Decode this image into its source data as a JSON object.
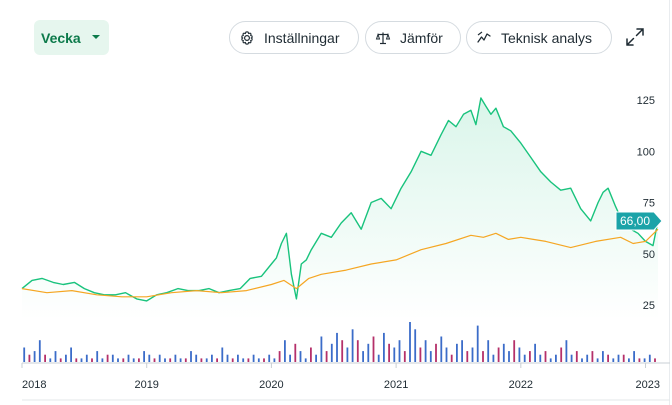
{
  "toolbar": {
    "period_label": "Vecka",
    "settings_label": "Inställningar",
    "compare_label": "Jämför",
    "technical_label": "Teknisk analys",
    "icons": {
      "period_caret": "caret-down-icon",
      "settings": "gear-icon",
      "compare": "scales-icon",
      "technical": "trend-line-icon",
      "expand": "expand-icon"
    }
  },
  "chart_data": {
    "type": "line",
    "title": "",
    "xlabel": "",
    "ylabel": "",
    "x_ticks": [
      "2018",
      "2019",
      "2020",
      "2021",
      "2022",
      "2023"
    ],
    "y_ticks": [
      125,
      100,
      75,
      50,
      25
    ],
    "ylim": [
      0,
      135
    ],
    "xlim": [
      2018.0,
      2023.1
    ],
    "grid": false,
    "current_price_label": "66,00",
    "colors": {
      "primary": "#19c37d",
      "secondary": "#f5a623",
      "badge": "#1ba3a8",
      "volume_up": "#3b6cc9",
      "volume_down": "#b5306a"
    },
    "series": [
      {
        "color": "#19c37d",
        "x": [
          2018.0,
          2018.08,
          2018.16,
          2018.25,
          2018.33,
          2018.42,
          2018.5,
          2018.58,
          2018.66,
          2018.75,
          2018.83,
          2018.92,
          2019.0,
          2019.08,
          2019.16,
          2019.25,
          2019.33,
          2019.42,
          2019.5,
          2019.58,
          2019.66,
          2019.75,
          2019.83,
          2019.92,
          2020.0,
          2020.04,
          2020.08,
          2020.12,
          2020.16,
          2020.2,
          2020.24,
          2020.28,
          2020.32,
          2020.4,
          2020.48,
          2020.56,
          2020.64,
          2020.72,
          2020.8,
          2020.88,
          2020.96,
          2021.04,
          2021.12,
          2021.2,
          2021.28,
          2021.36,
          2021.42,
          2021.48,
          2021.54,
          2021.6,
          2021.64,
          2021.68,
          2021.72,
          2021.76,
          2021.8,
          2021.86,
          2021.92,
          2022.0,
          2022.08,
          2022.16,
          2022.24,
          2022.32,
          2022.4,
          2022.48,
          2022.56,
          2022.62,
          2022.66,
          2022.7,
          2022.76,
          2022.82,
          2022.88,
          2022.94,
          2023.0,
          2023.06,
          2023.1
        ],
        "y": [
          33,
          37,
          38,
          36,
          35,
          36,
          33,
          31,
          30,
          30,
          31,
          28,
          27,
          30,
          31,
          33,
          32,
          32,
          33,
          31,
          32,
          33,
          38,
          39,
          45,
          48,
          55,
          60,
          40,
          28,
          45,
          47,
          52,
          60,
          58,
          65,
          70,
          62,
          75,
          77,
          72,
          82,
          90,
          100,
          98,
          108,
          115,
          112,
          118,
          120,
          113,
          126,
          122,
          118,
          121,
          112,
          110,
          104,
          97,
          90,
          85,
          81,
          82,
          72,
          66,
          75,
          80,
          82,
          73,
          65,
          62,
          60,
          56,
          54,
          66
        ]
      },
      {
        "color": "#f5a623",
        "x": [
          2018.0,
          2018.2,
          2018.4,
          2018.6,
          2018.8,
          2019.0,
          2019.2,
          2019.4,
          2019.6,
          2019.8,
          2020.0,
          2020.1,
          2020.2,
          2020.3,
          2020.4,
          2020.6,
          2020.8,
          2021.0,
          2021.2,
          2021.4,
          2021.6,
          2021.7,
          2021.8,
          2021.9,
          2022.0,
          2022.1,
          2022.2,
          2022.4,
          2022.6,
          2022.8,
          2022.9,
          2023.0,
          2023.1
        ],
        "y": [
          33,
          31,
          32,
          30,
          29,
          29,
          31,
          32,
          31,
          32,
          35,
          37,
          33,
          38,
          40,
          42,
          45,
          47,
          52,
          55,
          59,
          58,
          60,
          57,
          58,
          57,
          56,
          53,
          56,
          58,
          55,
          56,
          62
        ]
      }
    ],
    "volume_min_y": 0,
    "volume_values": [
      4,
      2,
      3,
      6,
      2,
      1,
      3,
      1,
      2,
      4,
      1,
      1,
      2,
      1,
      3,
      1,
      2,
      2,
      1,
      1,
      2,
      1,
      1,
      3,
      2,
      1,
      2,
      1,
      1,
      2,
      1,
      1,
      3,
      2,
      1,
      1,
      2,
      1,
      4,
      2,
      1,
      2,
      1,
      1,
      2,
      1,
      1,
      2,
      1,
      3,
      6,
      2,
      5,
      3,
      1,
      4,
      2,
      7,
      3,
      5,
      8,
      6,
      4,
      9,
      6,
      3,
      5,
      7,
      2,
      8,
      5,
      4,
      6,
      3,
      11,
      9,
      4,
      6,
      3,
      5,
      7,
      4,
      2,
      5,
      6,
      3,
      4,
      10,
      3,
      6,
      2,
      4,
      5,
      3,
      6,
      4,
      2,
      3,
      5,
      2,
      3,
      1,
      2,
      4,
      6,
      2,
      3,
      1,
      2,
      3,
      1,
      3,
      2,
      1,
      2,
      2,
      1,
      3,
      1,
      1,
      2,
      1
    ]
  }
}
